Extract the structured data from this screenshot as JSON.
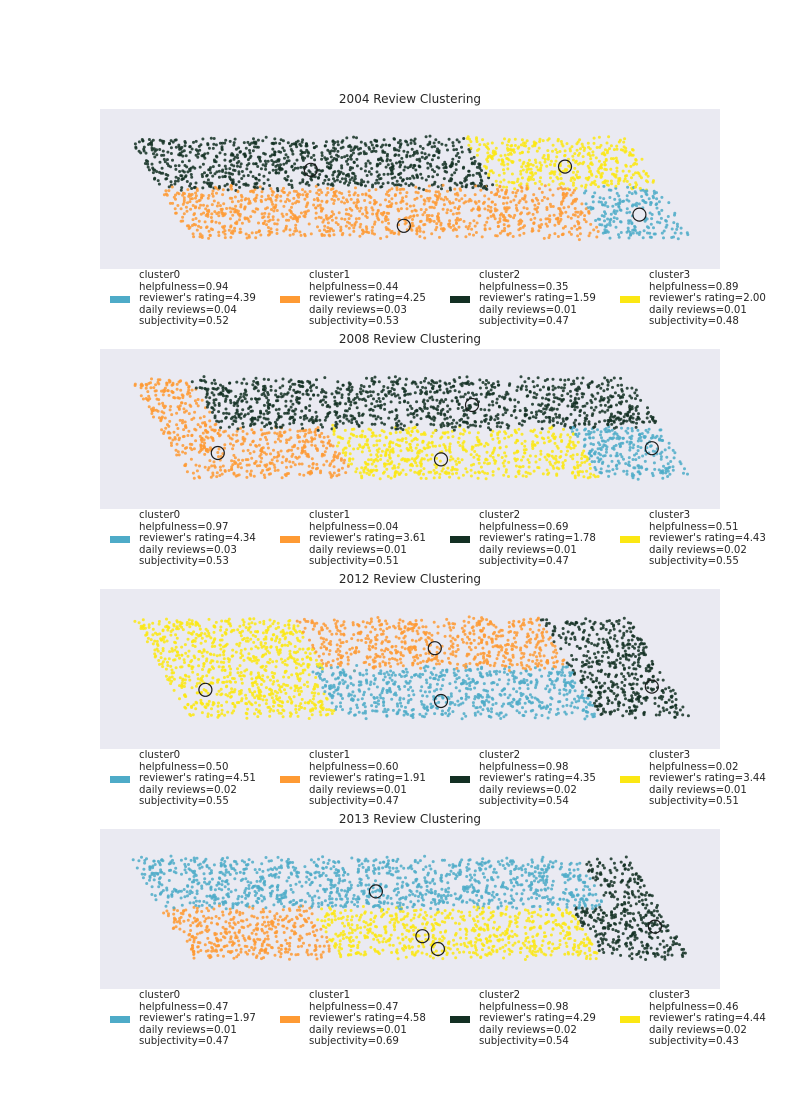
{
  "colors": {
    "cluster_blue": "#4eabc8",
    "cluster_orange": "#fe9a34",
    "cluster_dark": "#133023",
    "cluster_yellow": "#fbe713",
    "plot_background": "#eaeaf2"
  },
  "chart_data": [
    {
      "type": "scatter",
      "title": "2004 Review Clustering",
      "xlabel": "",
      "ylabel": "",
      "grid": false,
      "legend_position": "bottom",
      "series": [
        {
          "name": "cluster0",
          "color": "#4eabc8",
          "centroid": [
            0.87,
            0.34
          ],
          "stats": {
            "helpfulness": "helpfulness=0.94",
            "rating": "reviewer's rating=4.39",
            "daily": "daily reviews=0.04",
            "subjectivity": "subjectivity=0.52"
          }
        },
        {
          "name": "cluster1",
          "color": "#fe9a34",
          "centroid": [
            0.49,
            0.27
          ],
          "stats": {
            "helpfulness": "helpfulness=0.44",
            "rating": "reviewer's rating=4.25",
            "daily": "daily reviews=0.03",
            "subjectivity": "subjectivity=0.53"
          }
        },
        {
          "name": "cluster2",
          "color": "#133023",
          "centroid": [
            0.34,
            0.62
          ],
          "stats": {
            "helpfulness": "helpfulness=0.35",
            "rating": "reviewer's rating=1.59",
            "daily": "daily reviews=0.01",
            "subjectivity": "subjectivity=0.47"
          }
        },
        {
          "name": "cluster3",
          "color": "#fbe713",
          "centroid": [
            0.75,
            0.64
          ],
          "stats": {
            "helpfulness": "helpfulness=0.89",
            "rating": "reviewer's rating=2.00",
            "daily": "daily reviews=0.01",
            "subjectivity": "subjectivity=0.48"
          }
        }
      ]
    },
    {
      "type": "scatter",
      "title": "2008 Review Clustering",
      "xlabel": "",
      "ylabel": "",
      "grid": false,
      "legend_position": "bottom",
      "series": [
        {
          "name": "cluster0",
          "color": "#4eabc8",
          "centroid": [
            0.89,
            0.38
          ],
          "stats": {
            "helpfulness": "helpfulness=0.97",
            "rating": "reviewer's rating=4.34",
            "daily": "daily reviews=0.03",
            "subjectivity": "subjectivity=0.53"
          }
        },
        {
          "name": "cluster1",
          "color": "#fe9a34",
          "centroid": [
            0.19,
            0.35
          ],
          "stats": {
            "helpfulness": "helpfulness=0.04",
            "rating": "reviewer's rating=3.61",
            "daily": "daily reviews=0.01",
            "subjectivity": "subjectivity=0.51"
          }
        },
        {
          "name": "cluster2",
          "color": "#133023",
          "centroid": [
            0.6,
            0.65
          ],
          "stats": {
            "helpfulness": "helpfulness=0.69",
            "rating": "reviewer's rating=1.78",
            "daily": "daily reviews=0.01",
            "subjectivity": "subjectivity=0.47"
          }
        },
        {
          "name": "cluster3",
          "color": "#fbe713",
          "centroid": [
            0.55,
            0.31
          ],
          "stats": {
            "helpfulness": "helpfulness=0.51",
            "rating": "reviewer's rating=4.43",
            "daily": "daily reviews=0.02",
            "subjectivity": "subjectivity=0.55"
          }
        }
      ]
    },
    {
      "type": "scatter",
      "title": "2012 Review Clustering",
      "xlabel": "",
      "ylabel": "",
      "grid": false,
      "legend_position": "bottom",
      "series": [
        {
          "name": "cluster0",
          "color": "#4eabc8",
          "centroid": [
            0.55,
            0.3
          ],
          "stats": {
            "helpfulness": "helpfulness=0.50",
            "rating": "reviewer's rating=4.51",
            "daily": "daily reviews=0.02",
            "subjectivity": "subjectivity=0.55"
          }
        },
        {
          "name": "cluster1",
          "color": "#fe9a34",
          "centroid": [
            0.54,
            0.63
          ],
          "stats": {
            "helpfulness": "helpfulness=0.60",
            "rating": "reviewer's rating=1.91",
            "daily": "daily reviews=0.01",
            "subjectivity": "subjectivity=0.47"
          }
        },
        {
          "name": "cluster2",
          "color": "#133023",
          "centroid": [
            0.89,
            0.39
          ],
          "stats": {
            "helpfulness": "helpfulness=0.98",
            "rating": "reviewer's rating=4.35",
            "daily": "daily reviews=0.02",
            "subjectivity": "subjectivity=0.54"
          }
        },
        {
          "name": "cluster3",
          "color": "#fbe713",
          "centroid": [
            0.17,
            0.37
          ],
          "stats": {
            "helpfulness": "helpfulness=0.02",
            "rating": "reviewer's rating=3.44",
            "daily": "daily reviews=0.01",
            "subjectivity": "subjectivity=0.51"
          }
        }
      ]
    },
    {
      "type": "scatter",
      "title": "2013 Review Clustering",
      "xlabel": "",
      "ylabel": "",
      "grid": false,
      "legend_position": "bottom",
      "series": [
        {
          "name": "cluster0",
          "color": "#4eabc8",
          "centroid": [
            0.445,
            0.61
          ],
          "stats": {
            "helpfulness": "helpfulness=0.47",
            "rating": "reviewer's rating=1.97",
            "daily": "daily reviews=0.01",
            "subjectivity": "subjectivity=0.47"
          }
        },
        {
          "name": "cluster1",
          "color": "#fe9a34",
          "centroid": [
            0.545,
            0.25
          ],
          "stats": {
            "helpfulness": "helpfulness=0.47",
            "rating": "reviewer's rating=4.58",
            "daily": "daily reviews=0.01",
            "subjectivity": "subjectivity=0.69"
          }
        },
        {
          "name": "cluster2",
          "color": "#133023",
          "centroid": [
            0.895,
            0.39
          ],
          "stats": {
            "helpfulness": "helpfulness=0.98",
            "rating": "reviewer's rating=4.29",
            "daily": "daily reviews=0.02",
            "subjectivity": "subjectivity=0.54"
          }
        },
        {
          "name": "cluster3",
          "color": "#fbe713",
          "centroid": [
            0.52,
            0.33
          ],
          "stats": {
            "helpfulness": "helpfulness=0.46",
            "rating": "reviewer's rating=4.44",
            "daily": "daily reviews=0.02",
            "subjectivity": "subjectivity=0.43"
          }
        }
      ]
    }
  ]
}
